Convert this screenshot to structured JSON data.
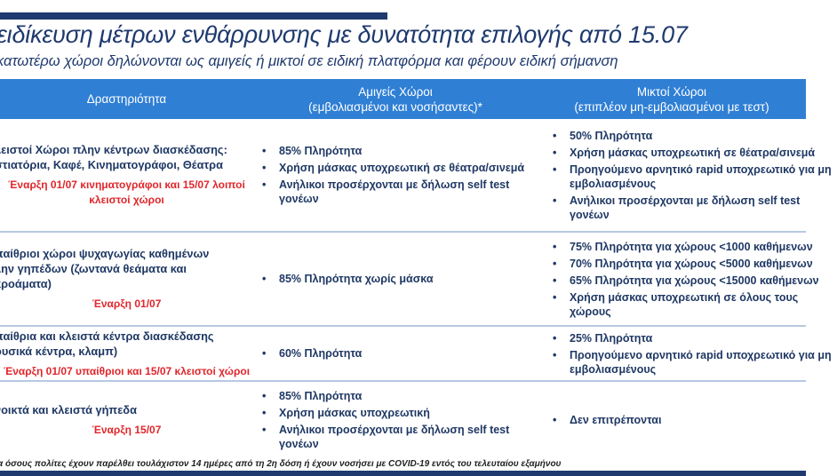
{
  "title": "ειδίκευση μέτρων ενθάρρυνσης με δυνατότητα επιλογής από 15.07",
  "subtitle": "κατωτέρω χώροι δηλώνονται ως αμιγείς ή μικτοί σε ειδική πλατφόρμα και φέρουν ειδική σήμανση",
  "header": {
    "col1": "Δραστηριότητα",
    "col2_l1": "Αμιγείς Χώροι",
    "col2_l2": "(εμβολιασμένοι και νοσήσαντες)*",
    "col3_l1": "Μικτοί Χώροι",
    "col3_l2": "(επιπλέον μη-εμβολιασμένοι με τεστ)"
  },
  "rows": [
    {
      "activity": [
        "λειστοί Χώροι πλην κέντρων διασκέδασης:",
        "στιατόρια, Καφέ, Κινηματογράφοι, Θέατρα"
      ],
      "start": "Έναρξη 01/07 κινηματογράφοι και 15/07 λοιποί κλειστοί χώροι",
      "pure": [
        "85% Πληρότητα",
        "Χρήση μάσκας υποχρεωτική σε θέατρα/σινεμά",
        "Ανήλικοι προσέρχονται με δήλωση self test γονέων"
      ],
      "mixed": [
        "50% Πληρότητα",
        "Χρήση μάσκας υποχρεωτική σε θέατρα/σινεμά",
        "Προηγούμενο αρνητικό rapid υποχρεωτικό για μη εμβολιασμένους",
        "Ανήλικοι προσέρχονται με δήλωση self test γονέων"
      ]
    },
    {
      "activity": [
        "παίθριοι χώροι ψυχαγωγίας καθημένων",
        "λην γηπέδων (ζωντανά θεάματα και",
        "κροάματα)"
      ],
      "start": "Έναρξη 01/07",
      "pure": [
        "85% Πληρότητα χωρίς μάσκα"
      ],
      "mixed": [
        "75% Πληρότητα για χώρους <1000 καθήμενων",
        "70% Πληρότητα για χώρους <5000 καθήμενων",
        "65% Πληρότητα για χώρους <15000 καθήμενων",
        "Χρήση μάσκας υποχρεωτική σε όλους τους χώρους"
      ]
    },
    {
      "activity": [
        "παίθρια και κλειστά κέντρα διασκέδασης",
        "ουσικά κέντρα, κλαμπ)"
      ],
      "start": "Έναρξη 01/07 υπαίθριοι και 15/07 κλειστοί χώροι",
      "pure": [
        "60% Πληρότητα"
      ],
      "mixed": [
        "25% Πληρότητα",
        "Προηγούμενο αρνητικό rapid υποχρεωτικό για μη εμβολιασμένους"
      ]
    },
    {
      "activity": [
        "νοικτά και κλειστά γήπεδα"
      ],
      "start": "Έναρξη 15/07",
      "pure": [
        "85% Πληρότητα",
        "Χρήση μάσκας υποχρεωτική",
        "Ανήλικοι προσέρχονται με δήλωση self test γονέων"
      ],
      "mixed": [
        "Δεν επιτρέπονται"
      ]
    }
  ],
  "footnote": "α όσους πολίτες έχουν παρέλθει τουλάχιστον 14 ημέρες από τη 2η δόση ή έχουν νοσήσει με COVID-19 εντός του τελευταίου εξαμήνου"
}
